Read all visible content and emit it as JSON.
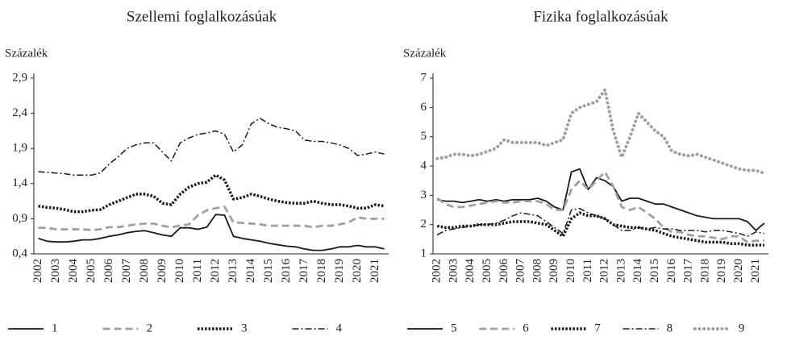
{
  "chart_data": [
    {
      "type": "line",
      "title": "Szellemi foglalkozásúak",
      "ylabel": "Százalék",
      "categories": [
        "2002",
        null,
        "2003",
        null,
        "2004",
        null,
        "2005",
        null,
        "2006",
        null,
        "2007",
        null,
        "2008",
        null,
        "2009",
        null,
        "2010",
        null,
        "2011",
        null,
        "2012",
        null,
        "2013",
        null,
        "2014",
        null,
        "2015",
        null,
        "2016",
        null,
        "2017",
        null,
        "2018",
        null,
        "2019",
        null,
        "2020",
        null,
        "2021",
        null
      ],
      "ylim": [
        0.4,
        2.9
      ],
      "yticks": [
        {
          "value": 0.4,
          "label": "0,4"
        },
        {
          "value": 0.9,
          "label": "0,9"
        },
        {
          "value": 1.4,
          "label": "1,4"
        },
        {
          "value": 1.9,
          "label": "1,9"
        },
        {
          "value": 2.4,
          "label": "2,4"
        },
        {
          "value": 2.9,
          "label": "2,9"
        }
      ],
      "series": [
        {
          "name": "1",
          "color": "#1a1a1a",
          "style": "solid",
          "values": [
            0.62,
            0.58,
            0.57,
            0.57,
            0.58,
            0.6,
            0.6,
            0.62,
            0.65,
            0.67,
            0.7,
            0.72,
            0.73,
            0.7,
            0.67,
            0.65,
            0.77,
            0.77,
            0.75,
            0.78,
            0.96,
            0.95,
            0.65,
            0.62,
            0.6,
            0.58,
            0.55,
            0.53,
            0.51,
            0.5,
            0.47,
            0.45,
            0.45,
            0.47,
            0.5,
            0.5,
            0.52,
            0.5,
            0.5,
            0.47
          ]
        },
        {
          "name": "2",
          "color": "#a0a0a0",
          "style": "dashed",
          "values": [
            0.77,
            0.77,
            0.75,
            0.75,
            0.75,
            0.75,
            0.74,
            0.75,
            0.78,
            0.78,
            0.8,
            0.82,
            0.83,
            0.83,
            0.8,
            0.78,
            0.8,
            0.82,
            0.95,
            1.02,
            1.05,
            1.07,
            0.85,
            0.84,
            0.83,
            0.82,
            0.8,
            0.8,
            0.8,
            0.8,
            0.8,
            0.78,
            0.8,
            0.8,
            0.82,
            0.85,
            0.92,
            0.9,
            0.9,
            0.9
          ]
        },
        {
          "name": "3",
          "color": "#1a1a1a",
          "style": "dotted",
          "values": [
            1.08,
            1.06,
            1.05,
            1.03,
            1.0,
            1.0,
            1.02,
            1.03,
            1.1,
            1.15,
            1.2,
            1.25,
            1.25,
            1.22,
            1.12,
            1.1,
            1.25,
            1.35,
            1.4,
            1.42,
            1.52,
            1.45,
            1.18,
            1.2,
            1.25,
            1.22,
            1.18,
            1.15,
            1.13,
            1.12,
            1.12,
            1.15,
            1.12,
            1.1,
            1.1,
            1.08,
            1.05,
            1.05,
            1.1,
            1.08
          ]
        },
        {
          "name": "4",
          "color": "#1a1a1a",
          "style": "dashdot",
          "values": [
            1.57,
            1.56,
            1.55,
            1.54,
            1.52,
            1.52,
            1.52,
            1.55,
            1.68,
            1.78,
            1.9,
            1.95,
            1.98,
            1.98,
            1.85,
            1.72,
            1.98,
            2.05,
            2.1,
            2.12,
            2.15,
            2.1,
            1.85,
            1.95,
            2.25,
            2.33,
            2.25,
            2.2,
            2.18,
            2.15,
            2.02,
            2.0,
            2.0,
            1.98,
            1.95,
            1.9,
            1.8,
            1.82,
            1.85,
            1.82
          ]
        }
      ]
    },
    {
      "type": "line",
      "title": "Fizika foglalkozásúak",
      "ylabel": "Százalék",
      "categories": [
        "2002",
        null,
        "2003",
        null,
        "2004",
        null,
        "2005",
        null,
        "2006",
        null,
        "2007",
        null,
        "2008",
        null,
        "2009",
        null,
        "2010",
        null,
        "2011",
        null,
        "2012",
        null,
        "2013",
        null,
        "2014",
        null,
        "2015",
        null,
        "2016",
        null,
        "2017",
        null,
        "2018",
        null,
        "2019",
        null,
        "2020",
        null,
        "2021",
        null
      ],
      "ylim": [
        1,
        7
      ],
      "yticks": [
        1,
        2,
        3,
        4,
        5,
        6,
        7
      ],
      "series": [
        {
          "name": "5",
          "color": "#1a1a1a",
          "style": "solid",
          "values": [
            2.85,
            2.8,
            2.8,
            2.75,
            2.8,
            2.85,
            2.8,
            2.85,
            2.8,
            2.85,
            2.85,
            2.85,
            2.9,
            2.8,
            2.6,
            2.5,
            3.8,
            3.9,
            3.2,
            3.6,
            3.5,
            3.3,
            2.8,
            2.9,
            2.9,
            2.8,
            2.7,
            2.7,
            2.6,
            2.5,
            2.4,
            2.3,
            2.25,
            2.2,
            2.2,
            2.2,
            2.2,
            2.1,
            1.8,
            2.05
          ]
        },
        {
          "name": "6",
          "color": "#a0a0a0",
          "style": "dashed",
          "values": [
            2.9,
            2.7,
            2.6,
            2.6,
            2.65,
            2.7,
            2.75,
            2.8,
            2.75,
            2.75,
            2.8,
            2.8,
            2.8,
            2.7,
            2.5,
            2.5,
            3.2,
            3.5,
            3.2,
            3.5,
            3.8,
            3.3,
            2.6,
            2.5,
            2.6,
            2.4,
            2.2,
            1.9,
            1.75,
            1.75,
            1.65,
            1.6,
            1.6,
            1.55,
            1.5,
            1.6,
            1.6,
            1.4,
            1.45,
            1.45
          ]
        },
        {
          "name": "7",
          "color": "#1a1a1a",
          "style": "dotted",
          "values": [
            1.95,
            1.9,
            1.9,
            1.95,
            1.95,
            2.0,
            2.0,
            2.0,
            2.05,
            2.1,
            2.1,
            2.1,
            2.05,
            2.0,
            1.8,
            1.6,
            2.2,
            2.4,
            2.3,
            2.3,
            2.2,
            2.0,
            1.95,
            1.9,
            1.9,
            1.85,
            1.8,
            1.7,
            1.6,
            1.55,
            1.5,
            1.45,
            1.4,
            1.4,
            1.4,
            1.35,
            1.35,
            1.3,
            1.3,
            1.3
          ]
        },
        {
          "name": "8",
          "color": "#1a1a1a",
          "style": "dashdot",
          "values": [
            1.65,
            1.8,
            1.85,
            1.9,
            1.95,
            2.0,
            2.0,
            2.05,
            2.15,
            2.3,
            2.4,
            2.35,
            2.3,
            2.1,
            1.9,
            1.7,
            2.5,
            2.55,
            2.4,
            2.3,
            2.2,
            2.0,
            1.8,
            1.8,
            1.9,
            1.85,
            1.9,
            1.85,
            1.85,
            1.8,
            1.8,
            1.8,
            1.75,
            1.8,
            1.8,
            1.75,
            1.7,
            1.6,
            1.75,
            1.7
          ]
        },
        {
          "name": "9",
          "color": "#a0a0a0",
          "style": "dots",
          "values": [
            4.25,
            4.3,
            4.4,
            4.4,
            4.35,
            4.4,
            4.5,
            4.6,
            4.9,
            4.8,
            4.8,
            4.8,
            4.8,
            4.7,
            4.8,
            4.9,
            5.8,
            6.0,
            6.1,
            6.2,
            6.6,
            5.2,
            4.3,
            5.0,
            5.8,
            5.5,
            5.2,
            5.0,
            4.5,
            4.4,
            4.35,
            4.4,
            4.3,
            4.2,
            4.1,
            4.0,
            3.9,
            3.85,
            3.85,
            3.75
          ]
        }
      ]
    }
  ]
}
